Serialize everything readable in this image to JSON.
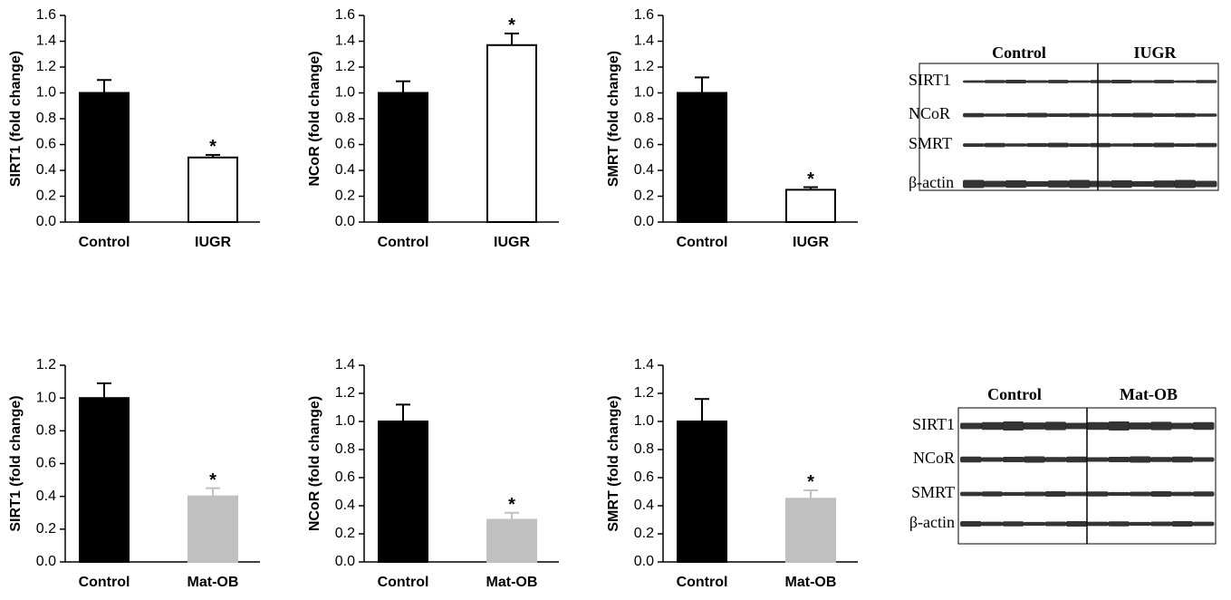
{
  "chart_data": [
    {
      "type": "bar",
      "ylabel": "SIRT1 (fold change)",
      "categories": [
        "Control",
        "IUGR"
      ],
      "values": [
        1.0,
        0.5
      ],
      "errors": [
        0.1,
        0.02
      ],
      "colors": [
        "#000000",
        "#ffffff"
      ],
      "error_colors": [
        "#000000",
        "#000000"
      ],
      "ylim": [
        0,
        1.6
      ],
      "yticks": [
        {
          "value": 0,
          "label": "0.0"
        },
        {
          "value": 0.2,
          "label": "0.2"
        },
        {
          "value": 0.4,
          "label": "0.4"
        },
        {
          "value": 0.6,
          "label": "0.6"
        },
        {
          "value": 0.8,
          "label": "0.8"
        },
        {
          "value": 1,
          "label": "1.0"
        },
        {
          "value": 1.2,
          "label": "1.2"
        },
        {
          "value": 1.4,
          "label": "1.4"
        },
        {
          "value": 1.6,
          "label": "1.6"
        }
      ],
      "annotations": [
        {
          "text": "*",
          "x": "IUGR"
        }
      ]
    },
    {
      "type": "bar",
      "ylabel": "NCoR (fold change)",
      "categories": [
        "Control",
        "IUGR"
      ],
      "values": [
        1.0,
        1.37
      ],
      "errors": [
        0.09,
        0.09
      ],
      "colors": [
        "#000000",
        "#ffffff"
      ],
      "error_colors": [
        "#000000",
        "#000000"
      ],
      "ylim": [
        0,
        1.6
      ],
      "yticks": [
        {
          "value": 0,
          "label": "0.0"
        },
        {
          "value": 0.2,
          "label": "0.2"
        },
        {
          "value": 0.4,
          "label": "0.4"
        },
        {
          "value": 0.6,
          "label": "0.6"
        },
        {
          "value": 0.8,
          "label": "0.8"
        },
        {
          "value": 1,
          "label": "1.0"
        },
        {
          "value": 1.2,
          "label": "1.2"
        },
        {
          "value": 1.4,
          "label": "1.4"
        },
        {
          "value": 1.6,
          "label": "1.6"
        }
      ],
      "annotations": [
        {
          "text": "*",
          "x": "IUGR"
        }
      ]
    },
    {
      "type": "bar",
      "ylabel": "SMRT (fold change)",
      "categories": [
        "Control",
        "IUGR"
      ],
      "values": [
        1.0,
        0.25
      ],
      "errors": [
        0.12,
        0.02
      ],
      "colors": [
        "#000000",
        "#ffffff"
      ],
      "error_colors": [
        "#000000",
        "#000000"
      ],
      "ylim": [
        0,
        1.6
      ],
      "yticks": [
        {
          "value": 0,
          "label": "0.0"
        },
        {
          "value": 0.2,
          "label": "0.2"
        },
        {
          "value": 0.4,
          "label": "0.4"
        },
        {
          "value": 0.6,
          "label": "0.6"
        },
        {
          "value": 0.8,
          "label": "0.8"
        },
        {
          "value": 1,
          "label": "1.0"
        },
        {
          "value": 1.2,
          "label": "1.2"
        },
        {
          "value": 1.4,
          "label": "1.4"
        },
        {
          "value": 1.6,
          "label": "1.6"
        }
      ],
      "annotations": [
        {
          "text": "*",
          "x": "IUGR"
        }
      ]
    },
    {
      "type": "bar",
      "ylabel": "SIRT1 (fold change)",
      "categories": [
        "Control",
        "Mat-OB"
      ],
      "values": [
        1.0,
        0.4
      ],
      "errors": [
        0.09,
        0.05
      ],
      "colors": [
        "#000000",
        "#c0c0c0"
      ],
      "error_colors": [
        "#000000",
        "#c0c0c0"
      ],
      "ylim": [
        0,
        1.2
      ],
      "yticks": [
        {
          "value": 0,
          "label": "0.0"
        },
        {
          "value": 0.2,
          "label": "0.2"
        },
        {
          "value": 0.4,
          "label": "0.4"
        },
        {
          "value": 0.6,
          "label": "0.6"
        },
        {
          "value": 0.8,
          "label": "0.8"
        },
        {
          "value": 1,
          "label": "1.0"
        },
        {
          "value": 1.2,
          "label": "1.2"
        }
      ],
      "annotations": [
        {
          "text": "*",
          "x": "Mat-OB"
        }
      ]
    },
    {
      "type": "bar",
      "ylabel": "NCoR (fold change)",
      "categories": [
        "Control",
        "Mat-OB"
      ],
      "values": [
        1.0,
        0.3
      ],
      "errors": [
        0.12,
        0.05
      ],
      "colors": [
        "#000000",
        "#c0c0c0"
      ],
      "error_colors": [
        "#000000",
        "#c0c0c0"
      ],
      "ylim": [
        0,
        1.4
      ],
      "yticks": [
        {
          "value": 0,
          "label": "0.0"
        },
        {
          "value": 0.2,
          "label": "0.2"
        },
        {
          "value": 0.4,
          "label": "0.4"
        },
        {
          "value": 0.6,
          "label": "0.6"
        },
        {
          "value": 0.8,
          "label": "0.8"
        },
        {
          "value": 1,
          "label": "1.0"
        },
        {
          "value": 1.2,
          "label": "1.2"
        },
        {
          "value": 1.4,
          "label": "1.4"
        }
      ],
      "annotations": [
        {
          "text": "*",
          "x": "Mat-OB"
        }
      ]
    },
    {
      "type": "bar",
      "ylabel": "SMRT (fold change)",
      "categories": [
        "Control",
        "Mat-OB"
      ],
      "values": [
        1.0,
        0.45
      ],
      "errors": [
        0.16,
        0.06
      ],
      "colors": [
        "#000000",
        "#c0c0c0"
      ],
      "error_colors": [
        "#000000",
        "#c0c0c0"
      ],
      "ylim": [
        0,
        1.4
      ],
      "yticks": [
        {
          "value": 0,
          "label": "0.0"
        },
        {
          "value": 0.2,
          "label": "0.2"
        },
        {
          "value": 0.4,
          "label": "0.4"
        },
        {
          "value": 0.6,
          "label": "0.6"
        },
        {
          "value": 0.8,
          "label": "0.8"
        },
        {
          "value": 1,
          "label": "1.0"
        },
        {
          "value": 1.2,
          "label": "1.2"
        },
        {
          "value": 1.4,
          "label": "1.4"
        }
      ],
      "annotations": [
        {
          "text": "*",
          "x": "Mat-OB"
        }
      ]
    }
  ],
  "blots": [
    {
      "columns": [
        "Control",
        "IUGR"
      ],
      "rows": [
        "SIRT1",
        "NCoR",
        "SMRT",
        "β-actin"
      ]
    },
    {
      "columns": [
        "Control",
        "Mat-OB"
      ],
      "rows": [
        "SIRT1",
        "NCoR",
        "SMRT",
        "β-actin"
      ]
    }
  ]
}
